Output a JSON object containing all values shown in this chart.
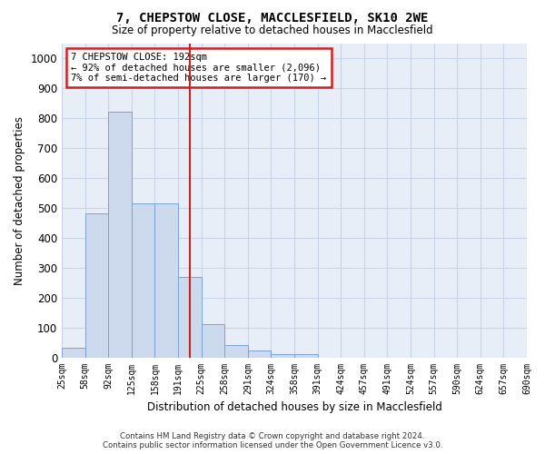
{
  "title": "7, CHEPSTOW CLOSE, MACCLESFIELD, SK10 2WE",
  "subtitle": "Size of property relative to detached houses in Macclesfield",
  "xlabel": "Distribution of detached houses by size in Macclesfield",
  "ylabel": "Number of detached properties",
  "footer_line1": "Contains HM Land Registry data © Crown copyright and database right 2024.",
  "footer_line2": "Contains public sector information licensed under the Open Government Licence v3.0.",
  "annotation_line1": "7 CHEPSTOW CLOSE: 192sqm",
  "annotation_line2": "← 92% of detached houses are smaller (2,096)",
  "annotation_line3": "7% of semi-detached houses are larger (170) →",
  "bar_values": [
    33,
    480,
    820,
    515,
    515,
    268,
    110,
    40,
    22,
    10,
    10,
    0,
    0,
    0,
    0,
    0,
    0,
    0,
    0,
    0
  ],
  "bar_labels": [
    "25sqm",
    "58sqm",
    "92sqm",
    "125sqm",
    "158sqm",
    "191sqm",
    "225sqm",
    "258sqm",
    "291sqm",
    "324sqm",
    "358sqm",
    "391sqm",
    "424sqm",
    "457sqm",
    "491sqm",
    "524sqm",
    "557sqm",
    "590sqm",
    "624sqm",
    "657sqm",
    "690sqm"
  ],
  "bar_color": "#cdd9ed",
  "bar_edge_color": "#7ba3d4",
  "vline_color": "#cc2222",
  "vline_x": 5.5,
  "annotation_box_color": "#cc2222",
  "grid_color": "#c8d4e8",
  "background_color": "#e8eef8",
  "ylim": [
    0,
    1050
  ],
  "yticks": [
    0,
    100,
    200,
    300,
    400,
    500,
    600,
    700,
    800,
    900,
    1000
  ]
}
